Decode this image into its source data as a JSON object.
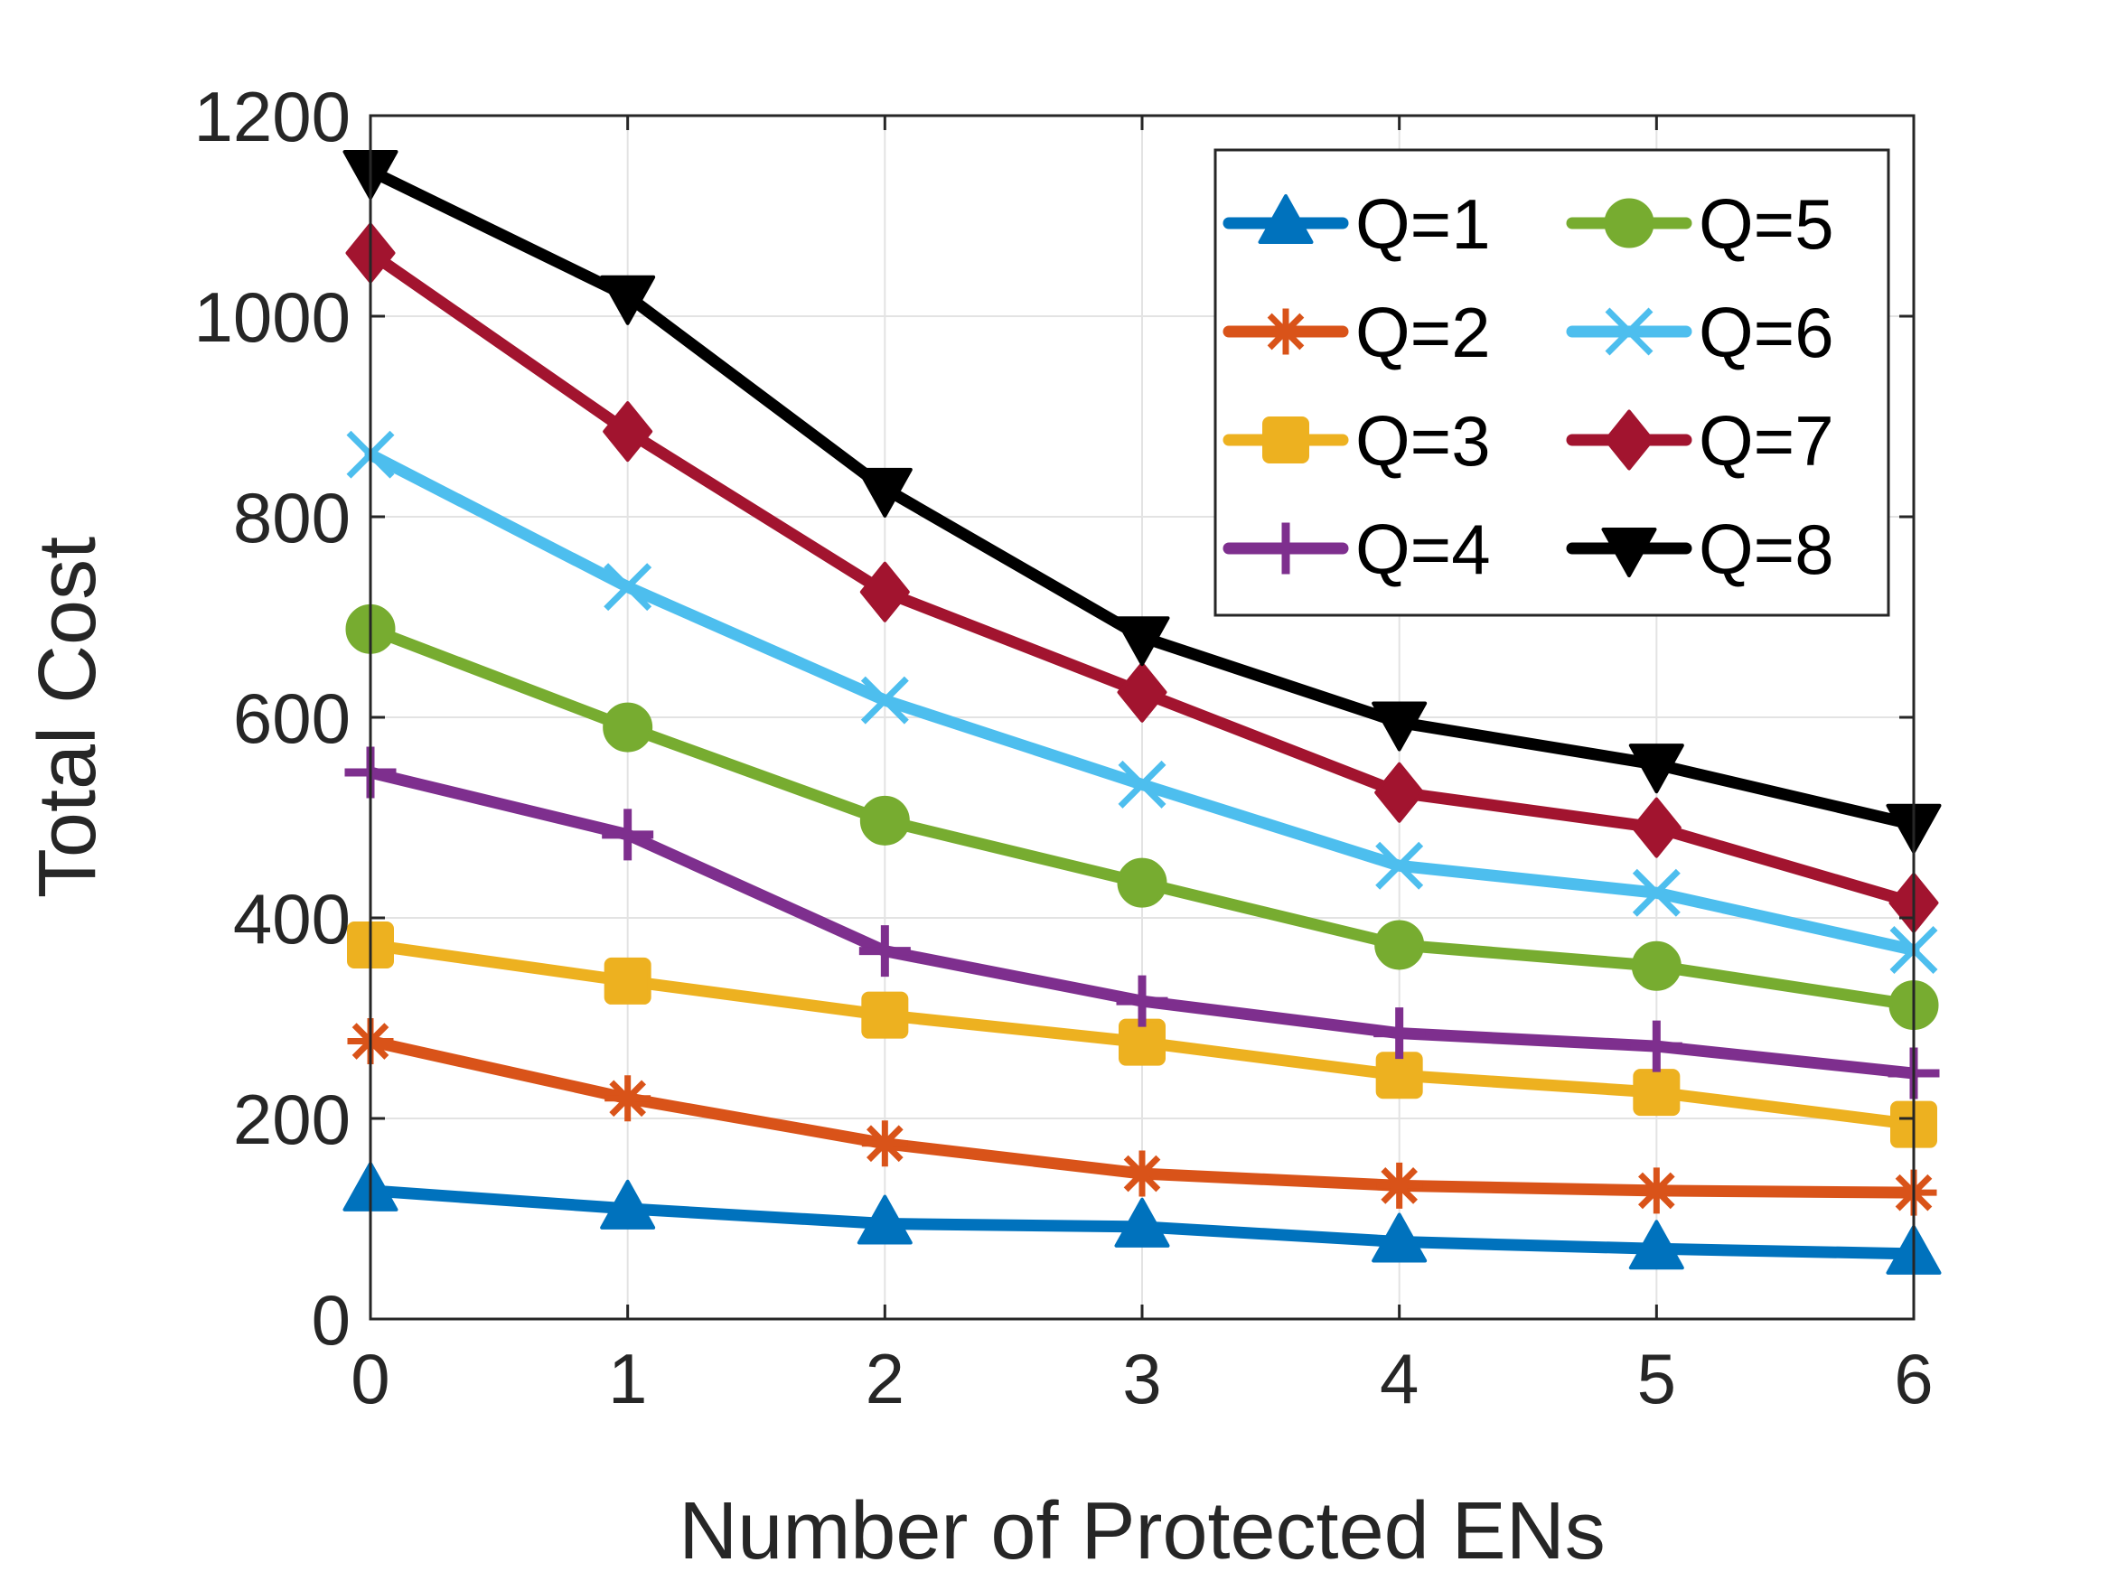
{
  "chart_data": {
    "type": "line",
    "title": "",
    "xlabel": "Number of Protected ENs",
    "ylabel": "Total Cost",
    "x": [
      0,
      1,
      2,
      3,
      4,
      5,
      6
    ],
    "xlim": [
      0,
      6
    ],
    "ylim": [
      0,
      1200
    ],
    "xticks": [
      "0",
      "1",
      "2",
      "3",
      "4",
      "5",
      "6"
    ],
    "yticks": [
      "0",
      "200",
      "400",
      "600",
      "800",
      "1000",
      "1200"
    ],
    "grid": true,
    "legend_position": "top-right",
    "series": [
      {
        "name": "Q=1",
        "marker": "triangle-up",
        "color": "#0072BD",
        "values": [
          128,
          110,
          95,
          92,
          77,
          70,
          65
        ]
      },
      {
        "name": "Q=2",
        "marker": "asterisk",
        "color": "#D95319",
        "values": [
          277,
          220,
          175,
          145,
          133,
          128,
          126
        ]
      },
      {
        "name": "Q=3",
        "marker": "square",
        "color": "#EDB120",
        "values": [
          373,
          337,
          303,
          276,
          243,
          226,
          194
        ]
      },
      {
        "name": "Q=4",
        "marker": "plus",
        "color": "#7E2F8E",
        "values": [
          545,
          483,
          367,
          317,
          285,
          272,
          245
        ]
      },
      {
        "name": "Q=5",
        "marker": "circle",
        "color": "#77AC30",
        "values": [
          688,
          590,
          497,
          435,
          373,
          352,
          313
        ]
      },
      {
        "name": "Q=6",
        "marker": "x",
        "color": "#4DBEEE",
        "values": [
          862,
          730,
          617,
          533,
          452,
          425,
          368
        ]
      },
      {
        "name": "Q=7",
        "marker": "diamond",
        "color": "#A2142F",
        "values": [
          1063,
          885,
          725,
          625,
          525,
          490,
          415
        ]
      },
      {
        "name": "Q=8",
        "marker": "triangle-down",
        "color": "#000000",
        "values": [
          1145,
          1020,
          828,
          680,
          595,
          553,
          493
        ]
      }
    ]
  }
}
